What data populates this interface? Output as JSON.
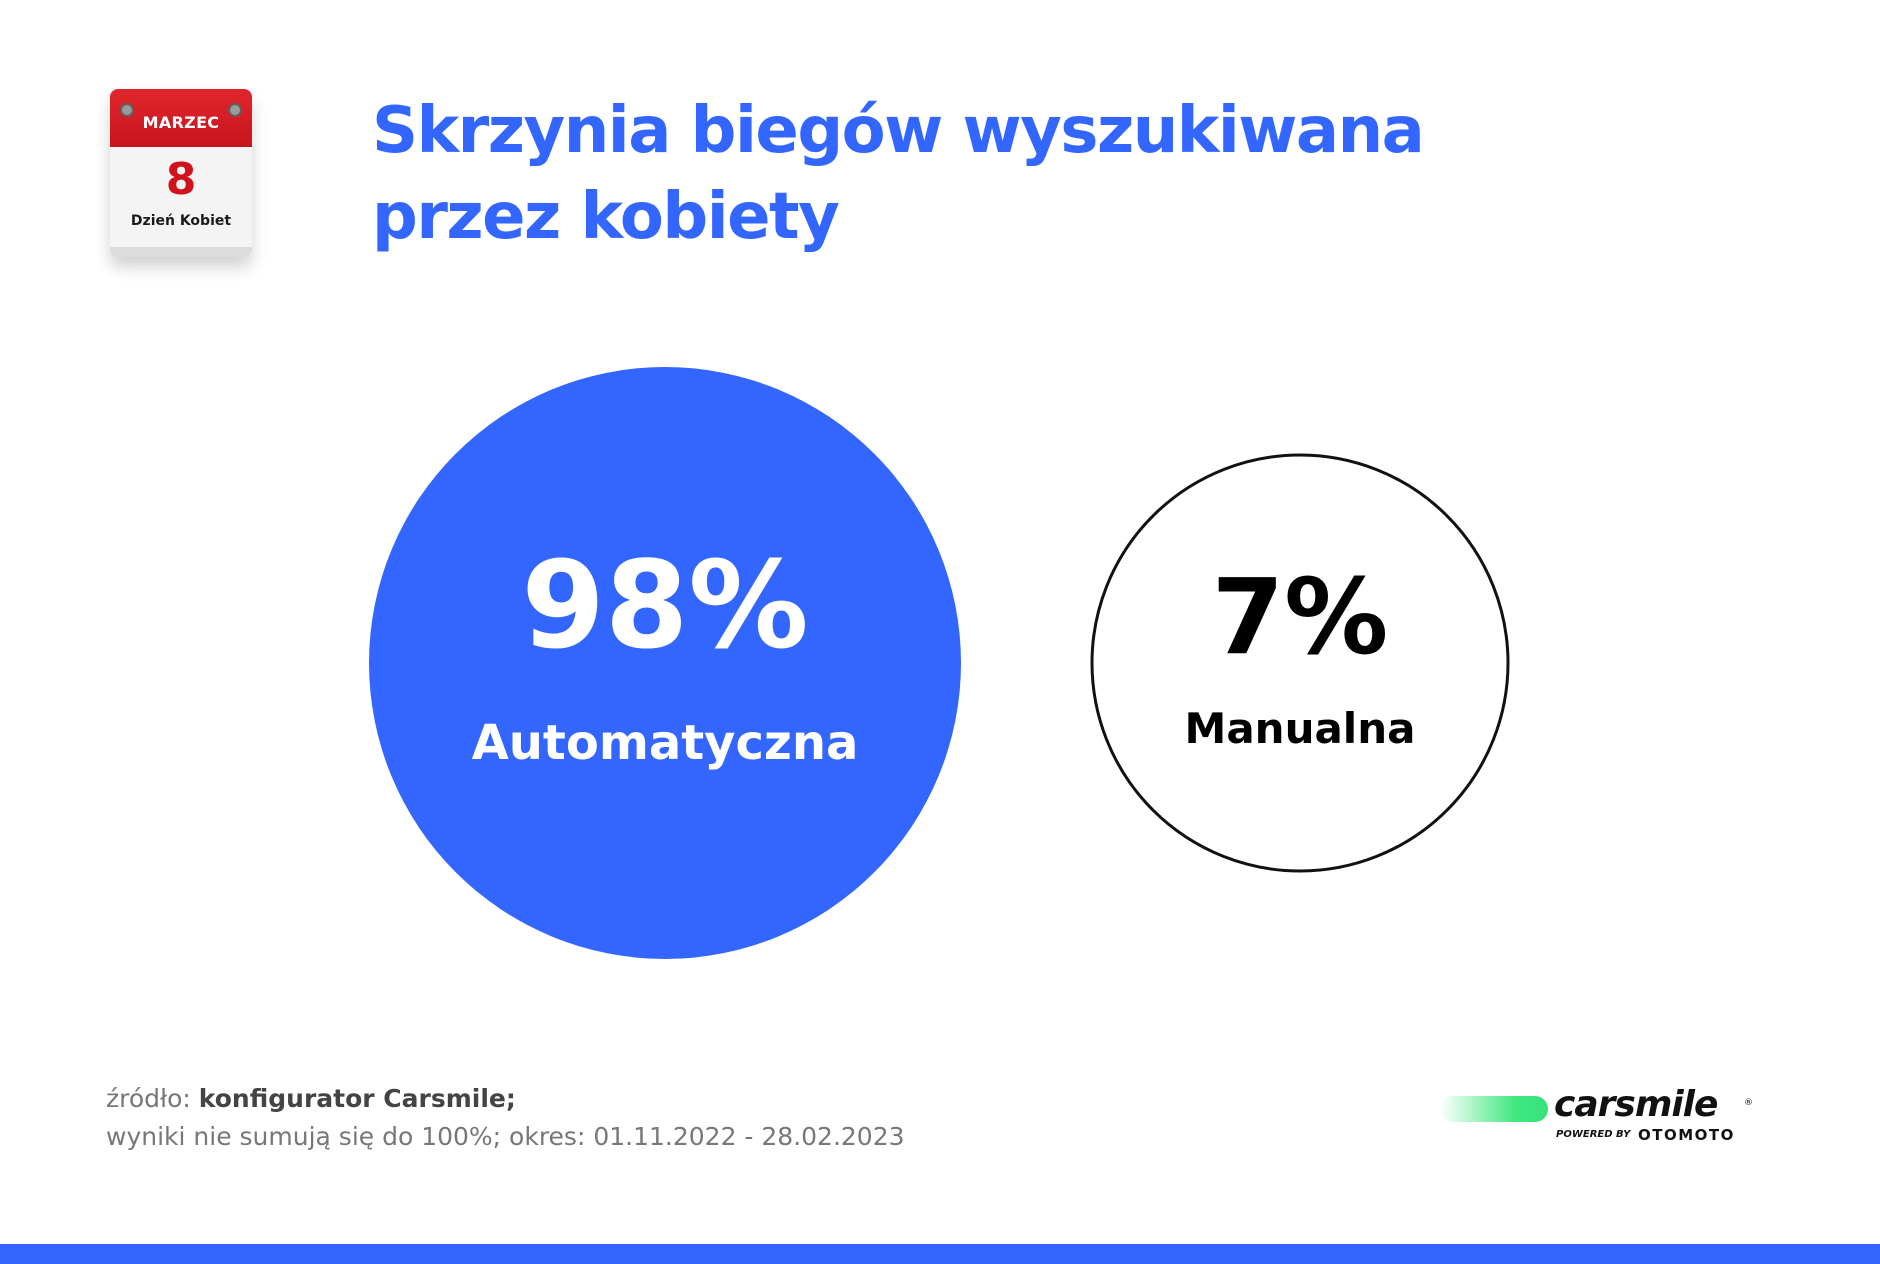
{
  "calendar": {
    "month": "MARZEC",
    "day": "8",
    "label": "Dzień Kobiet"
  },
  "title": {
    "line1": "Skrzynia biegów wyszukiwana",
    "line2": "przez kobiety"
  },
  "chart_data": {
    "type": "bubble",
    "title": "Skrzynia biegów wyszukiwana przez kobiety",
    "unit": "%",
    "series": [
      {
        "label": "Automatyczna",
        "value": 98,
        "display": "98%",
        "fill": "#3366ff",
        "text_color": "#ffffff",
        "stroke": "none"
      },
      {
        "label": "Manualna",
        "value": 7,
        "display": "7%",
        "fill": "#ffffff",
        "text_color": "#000000",
        "stroke": "#111111"
      }
    ]
  },
  "source": {
    "prefix": "źródło:",
    "name": "konfigurator Carsmile;",
    "note": "wyniki nie sumują się do 100%; okres: 01.11.2022 - 28.02.2023"
  },
  "logo": {
    "brand": "carsmile",
    "registered": "®",
    "powered_by": "POWERED BY",
    "partner": "OTOMOTO"
  },
  "colors": {
    "accent": "#3366ff",
    "calendar_red": "#d0121c",
    "logo_green": "#40e880"
  }
}
